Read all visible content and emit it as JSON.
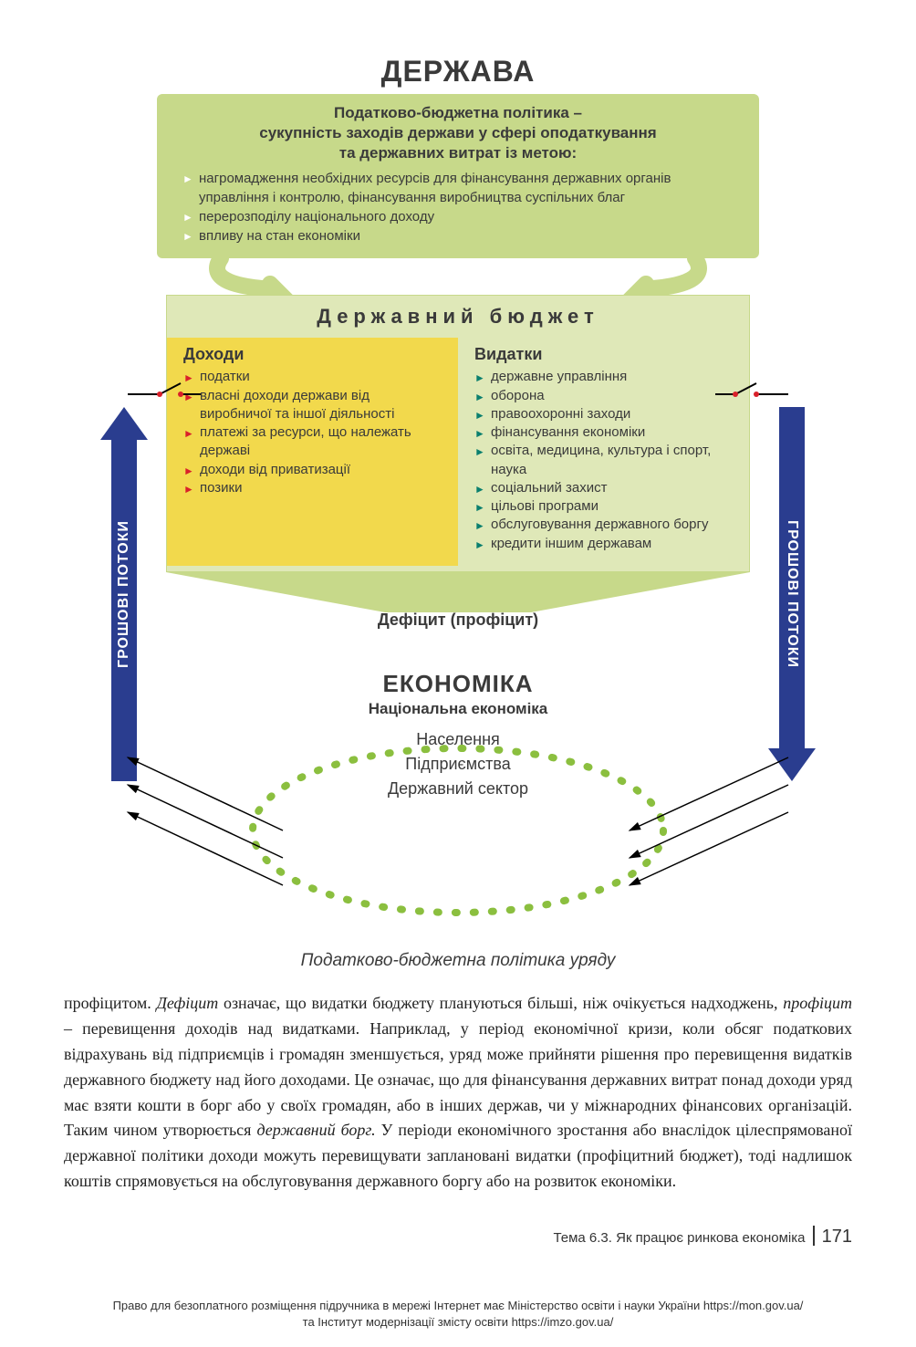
{
  "colors": {
    "green_box": "#c7d98a",
    "green_light": "#dfe8b8",
    "yellow": "#f2d94c",
    "blue_arrow": "#2a3d8f",
    "dot_green": "#8bbf3f",
    "red_marker": "#d9202a",
    "teal_marker": "#0a7f6e",
    "text": "#3a3a3a"
  },
  "diagram": {
    "state_title": "ДЕРЖАВА",
    "policy_heading_l1": "Податково-бюджетна політика –",
    "policy_heading_l2": "сукупність заходів держави у сфері оподаткування",
    "policy_heading_l3": "та державних витрат із метою:",
    "policy_bullets": [
      "нагромадження необхідних ресурсів для фінансування державних органів управління і контролю, фінансування виробництва суспільних благ",
      "перерозподілу національного доходу",
      "впливу на стан економіки"
    ],
    "budget_title": "Державний бюджет",
    "income_title": "Доходи",
    "income_items": [
      "податки",
      "власні доходи держави від виробничої та іншої діяльності",
      "платежі за ресурси, що належать державі",
      "доходи від приватизації",
      "позики"
    ],
    "expenses_title": "Видатки",
    "expenses_items": [
      "державне управління",
      "оборона",
      "правоохоронні заходи",
      "фінансування економіки",
      "освіта, медицина, культура і спорт, наука",
      "соціальний захист",
      "цільові програми",
      "обслуговування державного боргу",
      "кредити іншим державам"
    ],
    "deficit_label": "Дефіцит (профіцит)",
    "flow_label_left": "ГРОШОВІ ПОТОКИ",
    "flow_label_right": "ГРОШОВІ ПОТОКИ",
    "economy_title": "ЕКОНОМІКА",
    "economy_sub": "Національна економіка",
    "economy_items": [
      "Населення",
      "Підприємства",
      "Державний сектор"
    ]
  },
  "caption": "Податково-бюджетна політика уряду",
  "paragraph_parts": {
    "p1": "профіцитом. ",
    "em1": "Дефіцит",
    "p2": " означає, що видатки бюджету плануються більші, ніж очікується надходжень, ",
    "em2": "профіцит",
    "p3": " – перевищення доходів над видатками. Наприклад, у період економічної кризи, коли обсяг податкових відрахувань від підприємців і громадян зменшується, уряд може прийняти рішення про перевищення видатків державного бюджету над його доходами. Це означає, що для фінансування державних витрат понад доходи уряд має взяти кошти в борг або у своїх громадян, або в інших держав, чи у міжнародних фінансових організацій. Таким чином утворюється ",
    "em3": "державний борг.",
    "p4": " У періоди економічного зростання або внаслідок цілеспрямованої державної політики доходи можуть перевищувати заплановані видатки (профіцитний бюджет), тоді надлишок коштів спрямовується на обслуговування державного боргу або на розвиток економіки."
  },
  "footer": {
    "topic": "Тема 6.3. Як працює ринкова економіка",
    "page_number": "171",
    "rights_l1": "Право для безоплатного розміщення підручника в мережі Інтернет має Міністерство освіти і науки України https://mon.gov.ua/",
    "rights_l2": "та Інститут модернізації змісту освіти https://imzo.gov.ua/"
  }
}
